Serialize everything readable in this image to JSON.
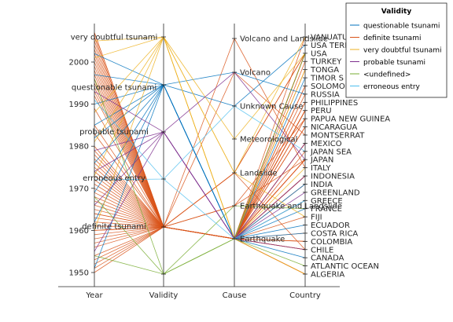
{
  "chart_data": {
    "type": "parallel-coordinates",
    "axes": [
      {
        "name": "Year",
        "kind": "numeric",
        "ylim": [
          1948,
          2008
        ],
        "ticks": [
          1950,
          1960,
          1970,
          1980,
          1990,
          2000
        ],
        "category_labels": [
          {
            "label": "very doubtful tsunami",
            "at": 2006
          },
          {
            "label": "questionable tsunami",
            "at": 1994
          },
          {
            "label": "probable tsunami",
            "at": 1983.5
          },
          {
            "label": "erroneous entry",
            "at": 1972.5
          },
          {
            "label": "definite tsunami",
            "at": 1961
          }
        ]
      },
      {
        "name": "Validity",
        "kind": "categorical",
        "categories": [
          "definite tsunami",
          "probable tsunami",
          "questionable tsunami",
          "very doubtful tsunami",
          "erroneous entry",
          "<undefined>"
        ]
      },
      {
        "name": "Cause",
        "kind": "categorical",
        "categories": [
          "Volcano and Landslide",
          "Volcano",
          "Unknown Cause",
          "Meteorological",
          "Landslide",
          "Earthquake and Landslide",
          "Earthquake"
        ]
      },
      {
        "name": "Country",
        "kind": "categorical",
        "categories": [
          "VANUATU",
          "USA TERRITORY",
          "USA",
          "TURKEY",
          "TONGA",
          "TIMOR S",
          "SOLOMON",
          "RUSSIA",
          "PHILIPPINES",
          "PERU",
          "PAPUA NEW GUINEA",
          "NICARAGUA",
          "MONTSERRAT",
          "MEXICO",
          "JAPAN SEA",
          "JAPAN",
          "ITALY",
          "INDONESIA",
          "INDIA",
          "GREENLAND",
          "GREECE",
          "FRANCE",
          "FIJI",
          "ECUADOR",
          "COSTA RICA",
          "COLOMBIA",
          "CHILE",
          "CANADA",
          "ATLANTIC OCEAN",
          "ALGERIA"
        ]
      }
    ],
    "axis_labels": [
      "Year",
      "Validity",
      "Cause",
      "Country"
    ],
    "legend": {
      "title": "Validity",
      "placement": "top-right",
      "entries": [
        {
          "name": "questionable tsunami",
          "color": "#0072bd"
        },
        {
          "name": "definite tsunami",
          "color": "#d95319"
        },
        {
          "name": "very doubtful tsunami",
          "color": "#edb120"
        },
        {
          "name": "probable tsunami",
          "color": "#7e2f8e"
        },
        {
          "name": "<undefined>",
          "color": "#77ac30"
        },
        {
          "name": "erroneous entry",
          "color": "#4dbeee"
        }
      ]
    },
    "series": [
      {
        "name": "definite tsunami",
        "values": [
          [
            1950,
            "definite tsunami",
            "Earthquake",
            "CHILE"
          ],
          [
            1951,
            "definite tsunami",
            "Earthquake",
            "JAPAN"
          ],
          [
            1952,
            "definite tsunami",
            "Earthquake",
            "RUSSIA"
          ],
          [
            1953,
            "definite tsunami",
            "Earthquake",
            "FIJI"
          ],
          [
            1954,
            "definite tsunami",
            "Earthquake",
            "ALGERIA"
          ],
          [
            1956,
            "definite tsunami",
            "Earthquake",
            "GREECE"
          ],
          [
            1957,
            "definite tsunami",
            "Earthquake",
            "USA"
          ],
          [
            1958,
            "definite tsunami",
            "Landslide",
            "USA"
          ],
          [
            1959,
            "definite tsunami",
            "Earthquake",
            "MEXICO"
          ],
          [
            1960,
            "definite tsunami",
            "Earthquake",
            "CHILE"
          ],
          [
            1960,
            "definite tsunami",
            "Earthquake",
            "PERU"
          ],
          [
            1961,
            "definite tsunami",
            "Earthquake",
            "JAPAN"
          ],
          [
            1962,
            "definite tsunami",
            "Earthquake",
            "COLOMBIA"
          ],
          [
            1963,
            "definite tsunami",
            "Earthquake",
            "INDONESIA"
          ],
          [
            1964,
            "definite tsunami",
            "Earthquake",
            "USA"
          ],
          [
            1964,
            "definite tsunami",
            "Earthquake",
            "JAPAN"
          ],
          [
            1965,
            "definite tsunami",
            "Earthquake",
            "USA"
          ],
          [
            1966,
            "definite tsunami",
            "Earthquake",
            "PERU"
          ],
          [
            1967,
            "definite tsunami",
            "Earthquake",
            "TURKEY"
          ],
          [
            1968,
            "definite tsunami",
            "Earthquake",
            "JAPAN"
          ],
          [
            1969,
            "definite tsunami",
            "Earthquake",
            "PHILIPPINES"
          ],
          [
            1970,
            "definite tsunami",
            "Earthquake",
            "PERU"
          ],
          [
            1971,
            "definite tsunami",
            "Earthquake",
            "PAPUA NEW GUINEA"
          ],
          [
            1972,
            "definite tsunami",
            "Earthquake",
            "NICARAGUA"
          ],
          [
            1973,
            "definite tsunami",
            "Earthquake",
            "JAPAN"
          ],
          [
            1974,
            "definite tsunami",
            "Earthquake",
            "PERU"
          ],
          [
            1975,
            "definite tsunami",
            "Earthquake",
            "USA"
          ],
          [
            1976,
            "definite tsunami",
            "Earthquake",
            "PHILIPPINES"
          ],
          [
            1977,
            "definite tsunami",
            "Earthquake",
            "INDONESIA"
          ],
          [
            1978,
            "definite tsunami",
            "Earthquake",
            "MEXICO"
          ],
          [
            1979,
            "definite tsunami",
            "Earthquake",
            "COLOMBIA"
          ],
          [
            1980,
            "definite tsunami",
            "Landslide",
            "USA"
          ],
          [
            1983,
            "definite tsunami",
            "Earthquake",
            "JAPAN SEA"
          ],
          [
            1985,
            "definite tsunami",
            "Earthquake",
            "CHILE"
          ],
          [
            1989,
            "definite tsunami",
            "Earthquake",
            "COSTA RICA"
          ],
          [
            1992,
            "definite tsunami",
            "Earthquake",
            "NICARAGUA"
          ],
          [
            1993,
            "definite tsunami",
            "Earthquake and Landslide",
            "JAPAN"
          ],
          [
            1994,
            "definite tsunami",
            "Earthquake",
            "INDONESIA"
          ],
          [
            1995,
            "definite tsunami",
            "Earthquake",
            "MEXICO"
          ],
          [
            1996,
            "definite tsunami",
            "Earthquake",
            "PERU"
          ],
          [
            1997,
            "definite tsunami",
            "Volcano",
            "MONTSERRAT"
          ],
          [
            1998,
            "definite tsunami",
            "Earthquake and Landslide",
            "PAPUA NEW GUINEA"
          ],
          [
            1999,
            "definite tsunami",
            "Earthquake",
            "VANUATU"
          ],
          [
            2000,
            "definite tsunami",
            "Earthquake",
            "PAPUA NEW GUINEA"
          ],
          [
            2001,
            "definite tsunami",
            "Earthquake",
            "PERU"
          ],
          [
            2002,
            "definite tsunami",
            "Earthquake",
            "SOLOMON"
          ],
          [
            2003,
            "definite tsunami",
            "Earthquake",
            "ALGERIA"
          ],
          [
            2004,
            "definite tsunami",
            "Earthquake",
            "INDONESIA"
          ],
          [
            2005,
            "definite tsunami",
            "Earthquake",
            "INDIA"
          ],
          [
            2006,
            "definite tsunami",
            "Earthquake",
            "TONGA"
          ],
          [
            2006,
            "definite tsunami",
            "Volcano and Landslide",
            "ITALY"
          ],
          [
            2007,
            "definite tsunami",
            "Earthquake",
            "SOLOMON"
          ],
          [
            2007,
            "definite tsunami",
            "Landslide",
            "CHILE"
          ]
        ]
      },
      {
        "name": "questionable tsunami",
        "values": [
          [
            1951,
            "questionable tsunami",
            "Earthquake",
            "CANADA"
          ],
          [
            1962,
            "questionable tsunami",
            "Earthquake",
            "GREECE"
          ],
          [
            1969,
            "questionable tsunami",
            "Earthquake",
            "ECUADOR"
          ],
          [
            1976,
            "questionable tsunami",
            "Earthquake",
            "FRANCE"
          ],
          [
            1982,
            "questionable tsunami",
            "Unknown Cause",
            "USA TERRITORY"
          ],
          [
            1985,
            "questionable tsunami",
            "Earthquake",
            "INDIA"
          ],
          [
            1990,
            "questionable tsunami",
            "Volcano",
            "RUSSIA"
          ],
          [
            1997,
            "questionable tsunami",
            "Earthquake",
            "COSTA RICA"
          ],
          [
            2002,
            "questionable tsunami",
            "Earthquake",
            "TIMOR S"
          ]
        ]
      },
      {
        "name": "very doubtful tsunami",
        "values": [
          [
            1960,
            "very doubtful tsunami",
            "Earthquake",
            "ALGERIA"
          ],
          [
            1973,
            "very doubtful tsunami",
            "Landslide",
            "FIJI"
          ],
          [
            1981,
            "very doubtful tsunami",
            "Meteorological",
            "USA"
          ],
          [
            1988,
            "very doubtful tsunami",
            "Earthquake",
            "TONGA"
          ],
          [
            2001,
            "very doubtful tsunami",
            "Landslide",
            "VANUATU"
          ],
          [
            2005,
            "very doubtful tsunami",
            "Earthquake",
            "ITALY"
          ]
        ]
      },
      {
        "name": "probable tsunami",
        "values": [
          [
            1955,
            "probable tsunami",
            "Earthquake",
            "CHILE"
          ],
          [
            1966,
            "probable tsunami",
            "Earthquake",
            "GREENLAND"
          ],
          [
            1974,
            "probable tsunami",
            "Volcano",
            "JAPAN"
          ],
          [
            1979,
            "probable tsunami",
            "Earthquake",
            "MEXICO"
          ],
          [
            1993,
            "probable tsunami",
            "Earthquake",
            "INDONESIA"
          ]
        ]
      },
      {
        "name": "<undefined>",
        "values": [
          [
            1954,
            "<undefined>",
            "Earthquake",
            "ATLANTIC OCEAN"
          ],
          [
            1968,
            "<undefined>",
            "Earthquake and Landslide",
            "FRANCE"
          ],
          [
            1996,
            "<undefined>",
            "Earthquake",
            "USA"
          ]
        ]
      },
      {
        "name": "erroneous entry",
        "values": [
          [
            1972,
            "erroneous entry",
            "Unknown Cause",
            "JAPAN SEA"
          ],
          [
            1991,
            "erroneous entry",
            "Earthquake",
            "GREECE"
          ]
        ]
      }
    ]
  }
}
